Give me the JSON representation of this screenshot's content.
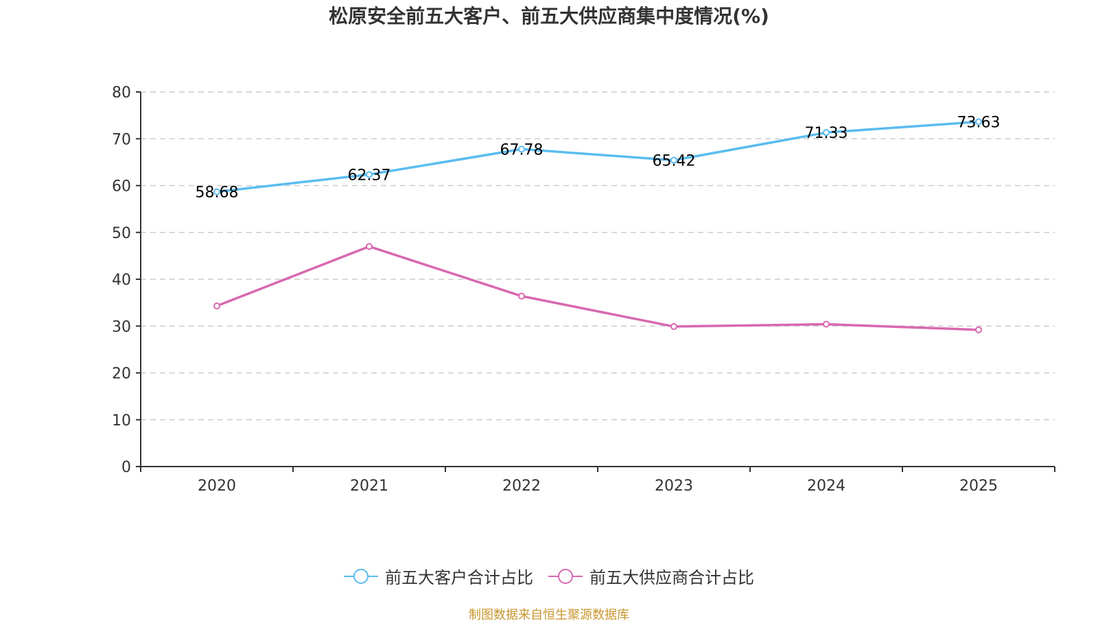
{
  "chart_data": {
    "type": "line",
    "title": "松原安全前五大客户、前五大供应商集中度情况(%)",
    "xlabel": "",
    "ylabel": "",
    "categories": [
      "2020",
      "2021",
      "2022",
      "2023",
      "2024",
      "2025"
    ],
    "ylim": [
      0,
      80
    ],
    "yticks": [
      0,
      10,
      20,
      30,
      40,
      50,
      60,
      70,
      80
    ],
    "grid": true,
    "legend_position": "bottom-center",
    "series": [
      {
        "name": "前五大客户合计占比",
        "color": "#5bbcf0",
        "values": [
          58.68,
          62.37,
          67.78,
          65.42,
          71.33,
          73.63
        ],
        "show_labels": true
      },
      {
        "name": "前五大供应商合计占比",
        "color": "#d868b0",
        "values": [
          34.3,
          47.0,
          36.4,
          29.9,
          30.4,
          29.2
        ],
        "show_labels": false
      }
    ],
    "source_note": "制图数据来自恒生聚源数据库"
  }
}
